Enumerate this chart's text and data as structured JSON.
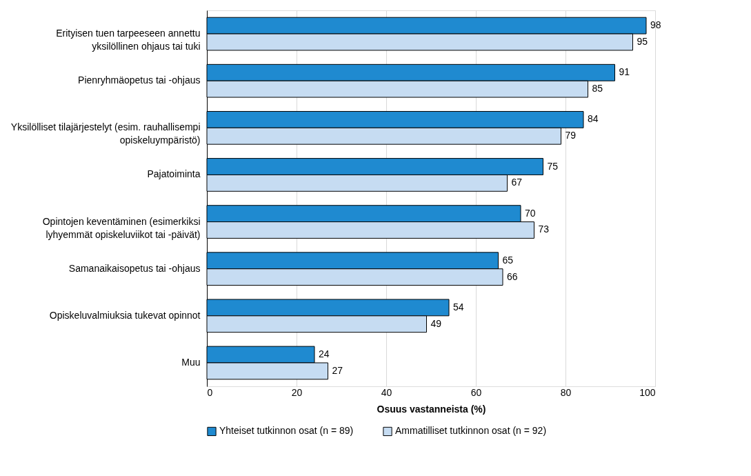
{
  "chart_data": {
    "type": "bar",
    "orientation": "horizontal",
    "categories": [
      "Erityisen tuen tarpeeseen annettu\nyksilöllinen ohjaus tai tuki",
      "Pienryhmäopetus tai -ohjaus",
      "Yksilölliset tilajärjestelyt (esim. rauhallisempi\nopiskeluympäristö)",
      "Pajatoiminta",
      "Opintojen keventäminen (esimerkiksi\nlyhyemmät opiskeluviikot tai -päivät)",
      "Samanaikaisopetus tai -ohjaus",
      "Opiskeluvalmiuksia tukevat opinnot",
      "Muu"
    ],
    "series": [
      {
        "name": "Yhteiset tutkinnon osat (n = 89)",
        "color": "#1f8ad0",
        "values": [
          98,
          91,
          84,
          75,
          70,
          65,
          54,
          24
        ]
      },
      {
        "name": "Ammatilliset tutkinnon osat (n = 92)",
        "color": "#c6dcf2",
        "values": [
          95,
          85,
          79,
          67,
          73,
          66,
          49,
          27
        ]
      }
    ],
    "xlabel": "Osuus vastanneista (%)",
    "xlim": [
      0,
      100
    ],
    "xticks": [
      0,
      20,
      40,
      60,
      80,
      100
    ],
    "grid": "x",
    "legend": "bottom",
    "data_labels": true
  }
}
